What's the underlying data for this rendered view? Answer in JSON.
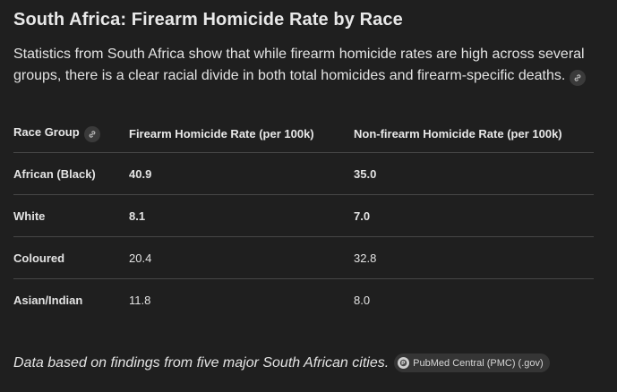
{
  "title": "South Africa: Firearm Homicide Rate by Race",
  "intro": "Statistics from South Africa show that while firearm homicide rates are high across several groups, there is a clear racial divide in both total homicides and firearm-specific deaths.",
  "table": {
    "headers": [
      "Race Group",
      "Firearm Homicide Rate (per 100k)",
      "Non-firearm Homicide Rate (per 100k)"
    ],
    "rows": [
      [
        "African (Black)",
        "40.9",
        "35.0"
      ],
      [
        "White",
        "8.1",
        "7.0"
      ],
      [
        "Coloured",
        "20.4",
        "32.8"
      ],
      [
        "Asian/Indian",
        "11.8",
        "8.0"
      ]
    ]
  },
  "footer": {
    "note": "Data based on findings from five major South African cities.",
    "source_label": "PubMed Central (PMC) (.gov)"
  },
  "icons": {
    "intro_link": "link-icon",
    "header_link": "link-icon",
    "source_logo": "pmc-logo-icon"
  },
  "colors": {
    "background": "#1f1f1f",
    "text": "#e3e3e3",
    "divider": "#474747",
    "chip": "#3a3a3a"
  }
}
